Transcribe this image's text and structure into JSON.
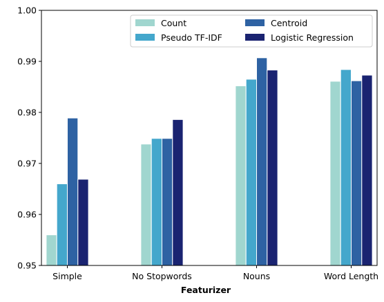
{
  "chart_data": {
    "type": "bar",
    "title": "",
    "xlabel": "Featurizer",
    "ylabel": "",
    "categories": [
      "Simple",
      "No Stopwords",
      "Nouns",
      "Word Length"
    ],
    "ylim": [
      0.95,
      1.0
    ],
    "yticks": [
      "0.95",
      "0.96",
      "0.97",
      "0.98",
      "0.99",
      "1.00"
    ],
    "grid": false,
    "legend_position": "top-right",
    "legend_columns": 2,
    "series": [
      {
        "name": "Count",
        "color": "#a0d6cf",
        "values": [
          0.956,
          0.9738,
          0.9852,
          0.9861
        ]
      },
      {
        "name": "Pseudo TF-IDF",
        "color": "#44a7cc",
        "values": [
          0.966,
          0.9749,
          0.9865,
          0.9884
        ]
      },
      {
        "name": "Centroid",
        "color": "#2e62a3",
        "values": [
          0.9789,
          0.9749,
          0.9907,
          0.9862
        ]
      },
      {
        "name": "Logistic Regression",
        "color": "#1a2371",
        "values": [
          0.9669,
          0.9786,
          0.9883,
          0.9873
        ]
      }
    ]
  }
}
